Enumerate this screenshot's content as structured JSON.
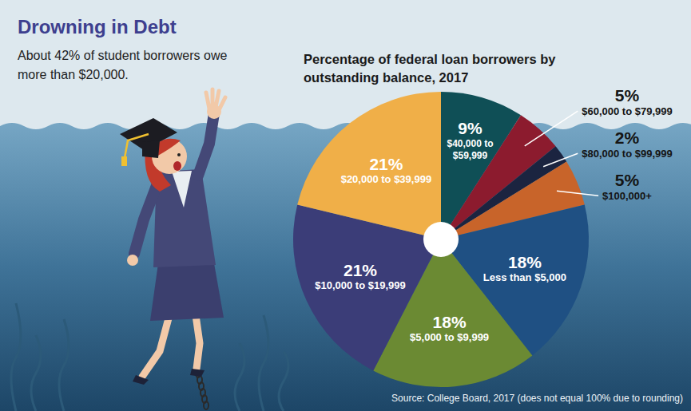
{
  "chart_data": {
    "type": "pie",
    "title": "Drowning in Debt",
    "subtitle": "About 42% of student borrowers owe more than $20,000.",
    "annotations": [
      "Percentage of federal loan borrowers by outstanding balance, 2017",
      "Source: College Board, 2017 (does not equal 100% due to rounding)"
    ],
    "categories": [
      "$40,000 to $59,999",
      "$60,000 to $79,999",
      "$80,000 to $99,999",
      "$100,000+",
      "Less than $5,000",
      "$5,000 to $9,999",
      "$10,000 to $19,999",
      "$20,000 to $39,999"
    ],
    "values": [
      9,
      5,
      2,
      5,
      18,
      18,
      21,
      21
    ],
    "value_labels": [
      "9%",
      "5%",
      "2%",
      "5%",
      "18%",
      "18%",
      "21%",
      "21%"
    ],
    "colors": [
      "#0f4f56",
      "#8c1b2e",
      "#1b2440",
      "#c8642a",
      "#1f5083",
      "#6b8a33",
      "#3b3d78",
      "#f0af48"
    ],
    "data_labels": true
  }
}
